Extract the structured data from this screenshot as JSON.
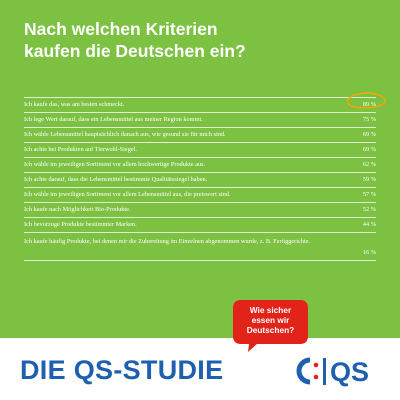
{
  "title": {
    "line1": "Nach welchen Kriterien",
    "line2": "kaufen die Deutschen ein?"
  },
  "chart_data": {
    "type": "table",
    "rows": [
      {
        "label": "Ich kaufe das, was am besten schmeckt.",
        "value": 89,
        "display": "89 %",
        "highlight": true
      },
      {
        "label": "Ich lege Wert darauf, dass ein Lebensmittel aus meiner Region kommt.",
        "value": 75,
        "display": "75 %"
      },
      {
        "label": "Ich wähle Lebensmittel hauptsächlich danach aus, wie gesund sie für mich sind.",
        "value": 69,
        "display": "69 %"
      },
      {
        "label": "Ich achte bei Produkten auf Tierwohl-Siegel.",
        "value": 69,
        "display": "69 %"
      },
      {
        "label": "Ich wähle im jeweiligen Sortiment vor allem hochwertige Produkte aus.",
        "value": 62,
        "display": "62 %"
      },
      {
        "label": "Ich achte darauf, dass die Lebensmittel bestimmte Qualitätssiegel haben.",
        "value": 59,
        "display": "59 %"
      },
      {
        "label": "Ich wähle im jeweiligen Sortiment vor allem Lebensmittel aus, die preiswert sind.",
        "value": 57,
        "display": "57 %"
      },
      {
        "label": "Ich kaufe nach Möglichkeit Bio-Produkte.",
        "value": 52,
        "display": "52 %"
      },
      {
        "label": "Ich bevorzuge Produkte bestimmter Marken.",
        "value": 44,
        "display": "44 %"
      },
      {
        "label": "Ich kaufe häufig Produkte, bei denen mir die Zubereitung im Einzelnen abgenommen wurde, z. B. Fertiggerichte.",
        "value": 16,
        "display": "16 %"
      }
    ]
  },
  "bubble": {
    "line1": "Wie sicher",
    "line2": "essen wir",
    "line3": "Deutschen?"
  },
  "footer": {
    "study": "DIE QS-STUDIE",
    "logo": "QS"
  },
  "colors": {
    "panel": "#7dc142",
    "highlight": "#f5a800",
    "bubble": "#e2231a",
    "brand": "#1f5fb0"
  }
}
